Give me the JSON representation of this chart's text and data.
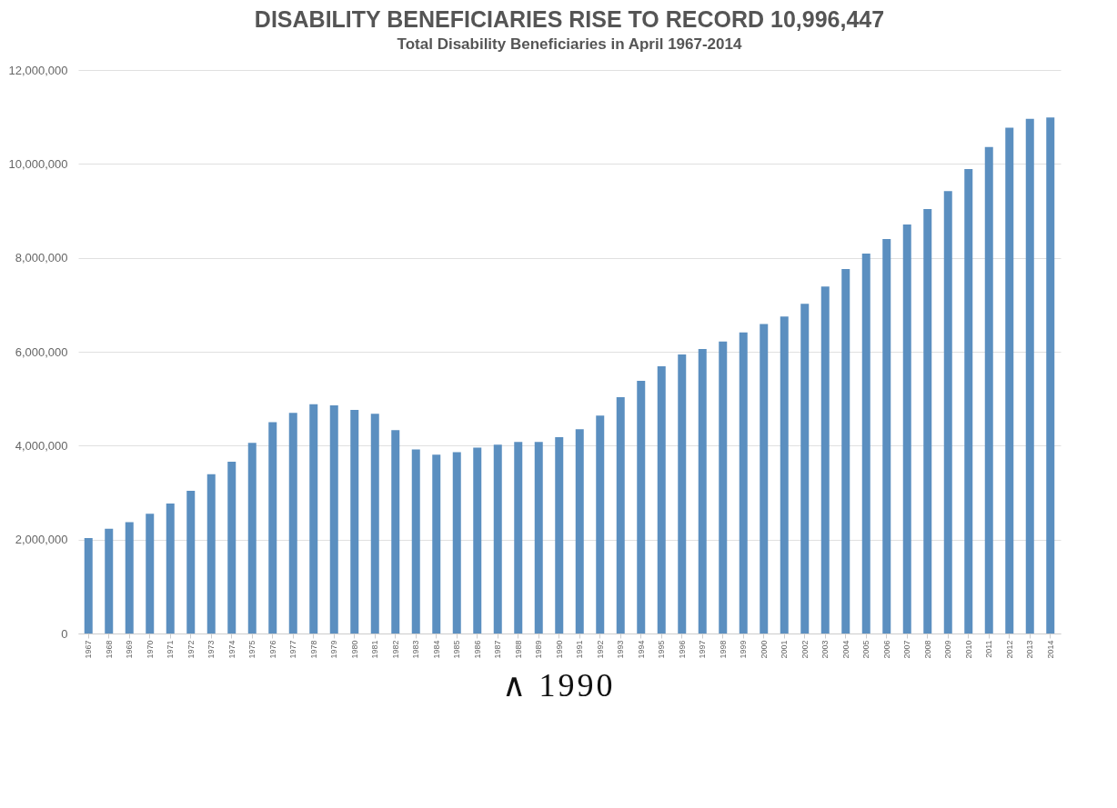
{
  "chart_data": {
    "type": "bar",
    "title": "DISABILITY BENEFICIARIES RISE TO RECORD 10,996,447",
    "subtitle": "Total Disability Beneficiaries in April 1967-2014",
    "categories": [
      "1967",
      "1968",
      "1969",
      "1970",
      "1971",
      "1972",
      "1973",
      "1974",
      "1975",
      "1976",
      "1977",
      "1978",
      "1979",
      "1980",
      "1981",
      "1982",
      "1983",
      "1984",
      "1985",
      "1986",
      "1987",
      "1988",
      "1989",
      "1990",
      "1991",
      "1992",
      "1993",
      "1994",
      "1995",
      "1996",
      "1997",
      "1998",
      "1999",
      "2000",
      "2001",
      "2002",
      "2003",
      "2004",
      "2005",
      "2006",
      "2007",
      "2008",
      "2009",
      "2010",
      "2011",
      "2012",
      "2013",
      "2014"
    ],
    "values": [
      2030000,
      2230000,
      2370000,
      2550000,
      2770000,
      3040000,
      3390000,
      3660000,
      4060000,
      4500000,
      4700000,
      4880000,
      4860000,
      4760000,
      4680000,
      4330000,
      3920000,
      3810000,
      3860000,
      3960000,
      4020000,
      4080000,
      4080000,
      4180000,
      4350000,
      4640000,
      5030000,
      5380000,
      5690000,
      5940000,
      6060000,
      6220000,
      6410000,
      6590000,
      6750000,
      7020000,
      7390000,
      7760000,
      8090000,
      8400000,
      8710000,
      9040000,
      9420000,
      9890000,
      10360000,
      10770000,
      10960000,
      10990000
    ],
    "color": "#5b8fc0",
    "ylim": [
      0,
      12000000
    ],
    "yticks": [
      0,
      {
        "value": 2000000,
        "label": "2,000,000"
      },
      {
        "value": 4000000,
        "label": "4,000,000"
      },
      {
        "value": 6000000,
        "label": "6,000,000"
      },
      {
        "value": 8000000,
        "label": "8,000,000"
      },
      {
        "value": 10000000,
        "label": "10,000,000"
      },
      {
        "value": 12000000,
        "label": "12,000,000"
      }
    ],
    "grid": "y",
    "annotations": [
      "∧ 1990"
    ]
  }
}
